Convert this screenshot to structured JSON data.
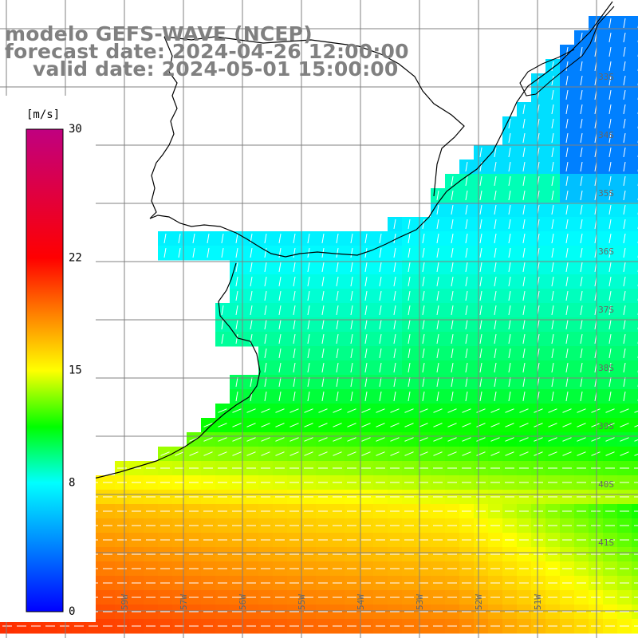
{
  "title": {
    "line1": "modelo GEFS-WAVE (NCEP)",
    "line2": "forecast date: 2024-04-26 12:00:00",
    "line3": "valid date: 2024-05-01 15:00:00"
  },
  "colorbar": {
    "unit": "[m/s]",
    "ticks": [
      "30",
      "22",
      "15",
      "8",
      "0"
    ],
    "tick_values": [
      30,
      22,
      15,
      8,
      0
    ],
    "min": 0,
    "max": 30,
    "colors": [
      "#0000ff",
      "#0080ff",
      "#00ffff",
      "#00ff00",
      "#ffff00",
      "#ff8000",
      "#ff0000",
      "#c00080"
    ]
  },
  "coords": {
    "lon_labels": [
      "61W",
      "60W",
      "59W",
      "57W",
      "56W",
      "55W",
      "54W",
      "53W",
      "52W",
      "51W"
    ],
    "lat_labels": [
      "33S",
      "34S",
      "35S",
      "36S",
      "37S",
      "38S",
      "39S",
      "40S",
      "41S"
    ]
  },
  "colors": {
    "title": "#808080",
    "grid": "#808080",
    "coast": "#000000",
    "arrow": "#ffffff"
  }
}
